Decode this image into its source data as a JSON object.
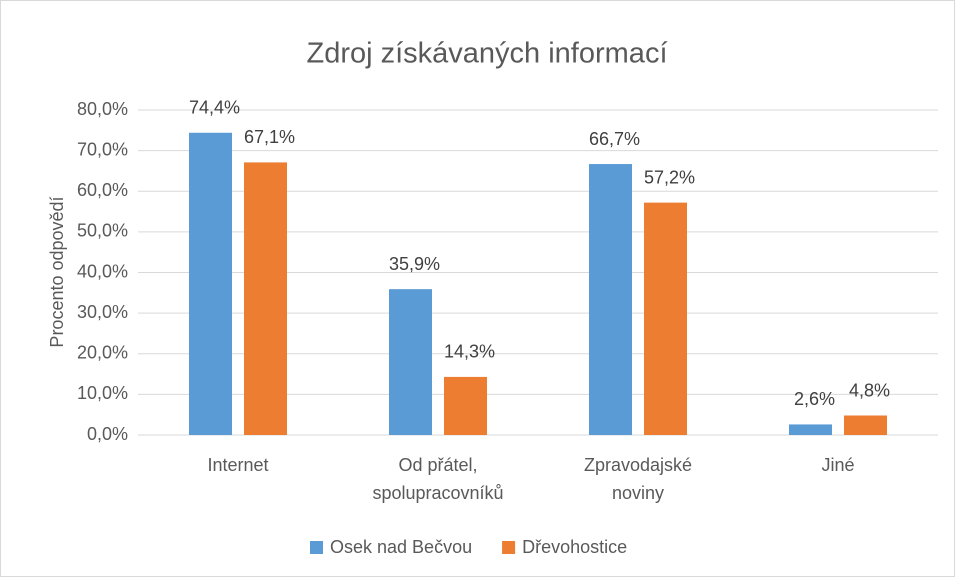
{
  "chart_data": {
    "type": "bar",
    "title": "Zdroj získávaných informací",
    "y_label": "Procento odpovědí",
    "categories": [
      "Internet",
      "Od přátel,\nspolupracovníků",
      "Zpravodajské\nnoviny",
      "Jiné"
    ],
    "series": [
      {
        "name": "Osek nad Bečvou",
        "color": "#5b9bd5",
        "values": [
          74.4,
          35.9,
          66.7,
          2.6
        ],
        "value_labels": [
          "74,4%",
          "35,9%",
          "66,7%",
          "2,6%"
        ]
      },
      {
        "name": "Dřevohostice",
        "color": "#ed7d31",
        "values": [
          67.1,
          14.3,
          57.2,
          4.8
        ],
        "value_labels": [
          "67,1%",
          "14,3%",
          "57,2%",
          "4,8%"
        ]
      }
    ],
    "ylim": [
      0,
      80
    ],
    "yticks": [
      {
        "value": 0,
        "label": "0,0%"
      },
      {
        "value": 10,
        "label": "10,0%"
      },
      {
        "value": 20,
        "label": "20,0%"
      },
      {
        "value": 30,
        "label": "30,0%"
      },
      {
        "value": 40,
        "label": "40,0%"
      },
      {
        "value": 50,
        "label": "50,0%"
      },
      {
        "value": 60,
        "label": "60,0%"
      },
      {
        "value": 70,
        "label": "70,0%"
      },
      {
        "value": 80,
        "label": "80,0%"
      }
    ],
    "grid": true,
    "legend": "bottom"
  }
}
